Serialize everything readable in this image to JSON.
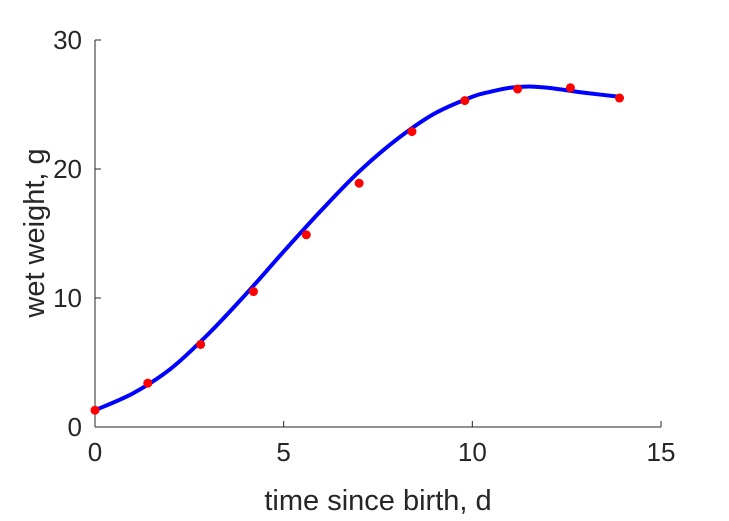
{
  "chart_data": {
    "type": "scatter",
    "title": "",
    "xlabel": "time since birth, d",
    "ylabel": "wet weight, g",
    "xlim": [
      0,
      15
    ],
    "ylim": [
      0,
      30
    ],
    "xticks": [
      "0",
      "5",
      "10",
      "15"
    ],
    "yticks": [
      "0",
      "10",
      "20",
      "30"
    ],
    "grid": false,
    "legend": "none",
    "series": [
      {
        "type": "scatter",
        "color": "#ff0000",
        "x": [
          0,
          1.4,
          2.8,
          4.2,
          5.6,
          7.0,
          8.4,
          9.8,
          11.2,
          12.6,
          13.9
        ],
        "y": [
          1.3,
          3.4,
          6.4,
          10.5,
          14.9,
          18.9,
          22.9,
          25.3,
          26.2,
          26.3,
          25.5
        ]
      },
      {
        "type": "line",
        "color": "#0000ff",
        "x": [
          0,
          1.0,
          2.0,
          3.0,
          4.0,
          5.0,
          6.0,
          7.0,
          8.0,
          9.0,
          10.0,
          10.5,
          11.0,
          11.5,
          12.0,
          12.5,
          13.0,
          13.9
        ],
        "y": [
          1.3,
          2.6,
          4.5,
          7.2,
          10.3,
          13.6,
          16.8,
          19.8,
          22.3,
          24.3,
          25.6,
          26.0,
          26.3,
          26.4,
          26.3,
          26.1,
          25.9,
          25.6
        ]
      }
    ]
  }
}
